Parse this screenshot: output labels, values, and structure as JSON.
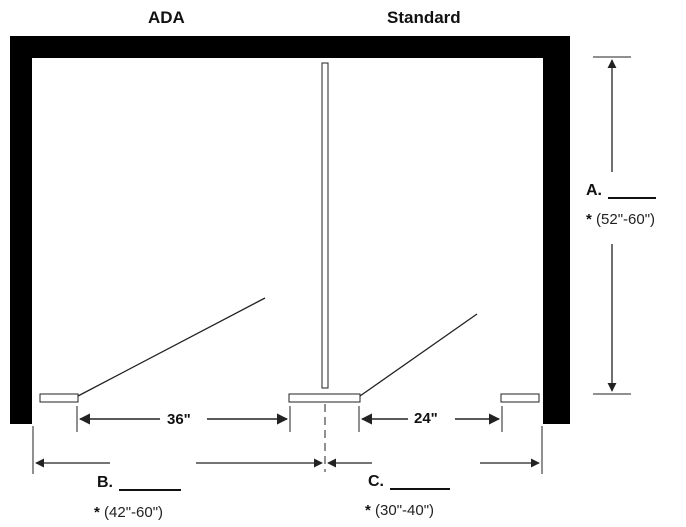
{
  "header": {
    "ada": "ADA",
    "standard": "Standard"
  },
  "dimensions": {
    "a": {
      "letter": "A.",
      "asterisk": "*",
      "range": "(52\"-60\")"
    },
    "b": {
      "letter": "B.",
      "asterisk": "*",
      "range": "(42\"-60\")"
    },
    "c": {
      "letter": "C.",
      "asterisk": "*",
      "range": "(30\"-40\")"
    },
    "ada_door": "36\"",
    "standard_door": "24\""
  },
  "colors": {
    "wall": "#000000",
    "line": "#222222"
  }
}
